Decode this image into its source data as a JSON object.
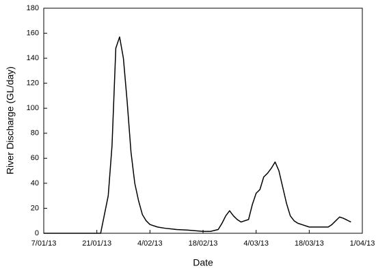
{
  "chart_data": {
    "type": "line",
    "x_label": "Date",
    "y_label": "River Discharge (GL/day)",
    "x": [
      "2013-01-07",
      "2013-01-22",
      "2013-01-24",
      "2013-01-25",
      "2013-01-26",
      "2013-01-27",
      "2013-01-28",
      "2013-01-29",
      "2013-01-30",
      "2013-01-31",
      "2013-02-01",
      "2013-02-02",
      "2013-02-03",
      "2013-02-04",
      "2013-02-06",
      "2013-02-08",
      "2013-02-11",
      "2013-02-14",
      "2013-02-18",
      "2013-02-20",
      "2013-02-22",
      "2013-02-23",
      "2013-02-24",
      "2013-02-25",
      "2013-02-26",
      "2013-02-27",
      "2013-02-28",
      "2013-03-02",
      "2013-03-03",
      "2013-03-04",
      "2013-03-05",
      "2013-03-06",
      "2013-03-07",
      "2013-03-08",
      "2013-03-09",
      "2013-03-10",
      "2013-03-11",
      "2013-03-12",
      "2013-03-13",
      "2013-03-14",
      "2013-03-15",
      "2013-03-16",
      "2013-03-18",
      "2013-03-21",
      "2013-03-23",
      "2013-03-24",
      "2013-03-25",
      "2013-03-26",
      "2013-03-27",
      "2013-03-29"
    ],
    "series": [
      {
        "color": "#000000",
        "values": [
          0,
          0,
          30,
          70,
          148,
          157,
          140,
          105,
          65,
          40,
          26,
          15,
          10,
          7,
          5,
          4,
          3,
          2.5,
          1.5,
          1.5,
          3,
          8,
          14,
          18,
          14,
          11,
          9,
          11,
          23,
          32,
          35,
          45,
          48,
          52,
          57,
          50,
          37,
          24,
          14,
          10,
          8,
          7,
          5,
          5,
          5,
          7,
          10,
          13,
          12,
          9
        ]
      }
    ],
    "xlim": [
      "2013-01-07",
      "2013-04-01"
    ],
    "xticks": [
      {
        "value": "2013-01-07",
        "label": "7/01/13"
      },
      {
        "value": "2013-01-21",
        "label": "21/01/13"
      },
      {
        "value": "2013-02-04",
        "label": "4/02/13"
      },
      {
        "value": "2013-02-18",
        "label": "18/02/13"
      },
      {
        "value": "2013-03-04",
        "label": "4/03/13"
      },
      {
        "value": "2013-03-18",
        "label": "18/03/13"
      },
      {
        "value": "2013-04-01",
        "label": "1/04/13"
      }
    ],
    "ylim": [
      0,
      180
    ],
    "yticks": [
      0,
      20,
      40,
      60,
      80,
      100,
      120,
      140,
      160,
      180
    ],
    "grid": false
  }
}
